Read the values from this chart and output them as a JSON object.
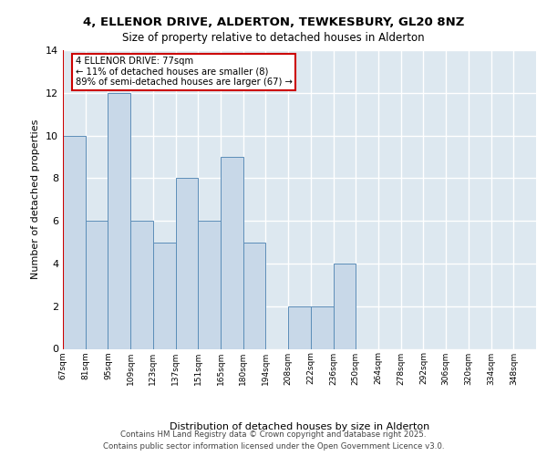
{
  "title": "4, ELLENOR DRIVE, ALDERTON, TEWKESBURY, GL20 8NZ",
  "subtitle": "Size of property relative to detached houses in Alderton",
  "xlabel": "Distribution of detached houses by size in Alderton",
  "ylabel": "Number of detached properties",
  "footer_line1": "Contains HM Land Registry data © Crown copyright and database right 2025.",
  "footer_line2": "Contains public sector information licensed under the Open Government Licence v3.0.",
  "bins": [
    "67sqm",
    "81sqm",
    "95sqm",
    "109sqm",
    "123sqm",
    "137sqm",
    "151sqm",
    "165sqm",
    "180sqm",
    "194sqm",
    "208sqm",
    "222sqm",
    "236sqm",
    "250sqm",
    "264sqm",
    "278sqm",
    "292sqm",
    "306sqm",
    "320sqm",
    "334sqm",
    "348sqm"
  ],
  "values": [
    10,
    6,
    12,
    6,
    5,
    8,
    6,
    9,
    5,
    0,
    2,
    2,
    4,
    0,
    0,
    0,
    0,
    0,
    0,
    0,
    0
  ],
  "bar_color": "#c8d8e8",
  "bar_edge_color": "#5b8db8",
  "background_color": "#dde8f0",
  "grid_color": "#ffffff",
  "highlight_color": "#cc0000",
  "annotation_text": "4 ELLENOR DRIVE: 77sqm\n← 11% of detached houses are smaller (8)\n89% of semi-detached houses are larger (67) →",
  "annotation_box_color": "#ffffff",
  "annotation_box_edge": "#cc0000",
  "ylim": [
    0,
    14
  ],
  "yticks": [
    0,
    2,
    4,
    6,
    8,
    10,
    12,
    14
  ]
}
